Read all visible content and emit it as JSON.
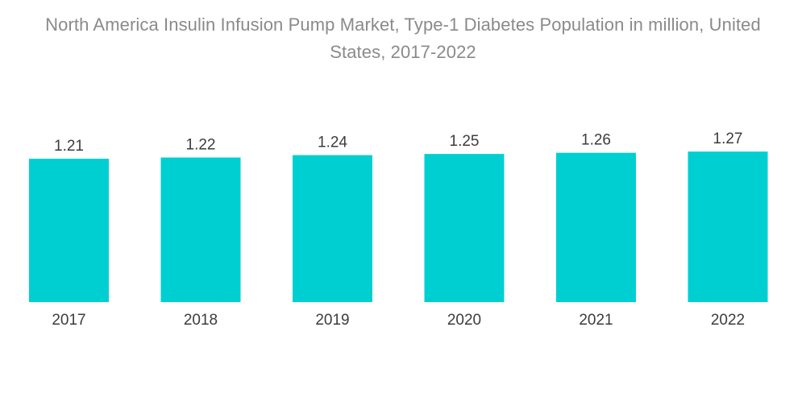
{
  "title_line1": "North America Insulin Infusion Pump Market, Type-1 Diabetes Population in million, United",
  "title_line2": "States, 2017-2022",
  "colors": {
    "bar": "#00cfd1",
    "title": "#8a8a8a",
    "label": "#3c3c3c"
  },
  "chart_data": {
    "type": "bar",
    "title": "North America Insulin Infusion Pump Market, Type-1 Diabetes Population in million, United States, 2017-2022",
    "categories": [
      "2017",
      "2018",
      "2019",
      "2020",
      "2021",
      "2022"
    ],
    "values": [
      1.21,
      1.22,
      1.24,
      1.25,
      1.26,
      1.27
    ],
    "value_labels": [
      "1.21",
      "1.22",
      "1.24",
      "1.25",
      "1.26",
      "1.27"
    ],
    "xlabel": "",
    "ylabel": "",
    "grid": false,
    "legend": "none"
  }
}
